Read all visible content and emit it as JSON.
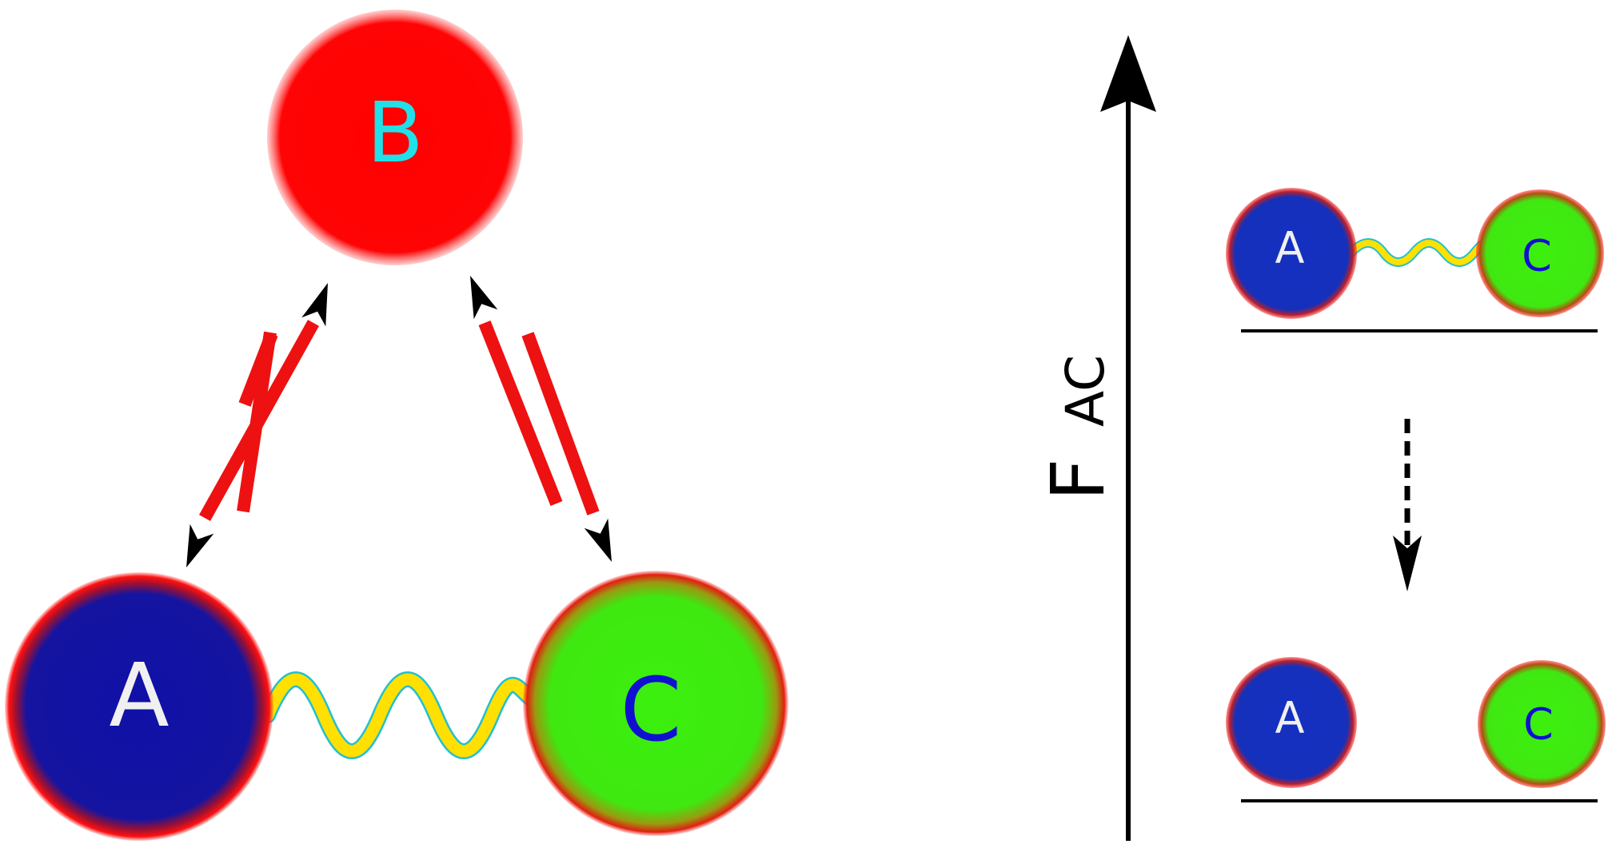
{
  "nodes": {
    "a": {
      "label": "A",
      "fill": "#1010a8",
      "text_color": "#f0f0f0"
    },
    "b": {
      "label": "B",
      "fill": "#ff0000",
      "text_color": "#22e0e8"
    },
    "c": {
      "label": "C",
      "fill": "#3cf00e",
      "text_color": "#1010d0"
    }
  },
  "panel": {
    "axis_main": "F",
    "axis_sub": "AC",
    "top": {
      "a_label": "A",
      "c_label": "C"
    },
    "bottom": {
      "a_label": "A",
      "c_label": "C"
    }
  },
  "colors": {
    "rim": "#e01010",
    "spring": "#ffe000",
    "spring_edge": "#22c0d0",
    "arrow": "#000000",
    "bar": "#ee1111",
    "baseline": "#000000"
  }
}
